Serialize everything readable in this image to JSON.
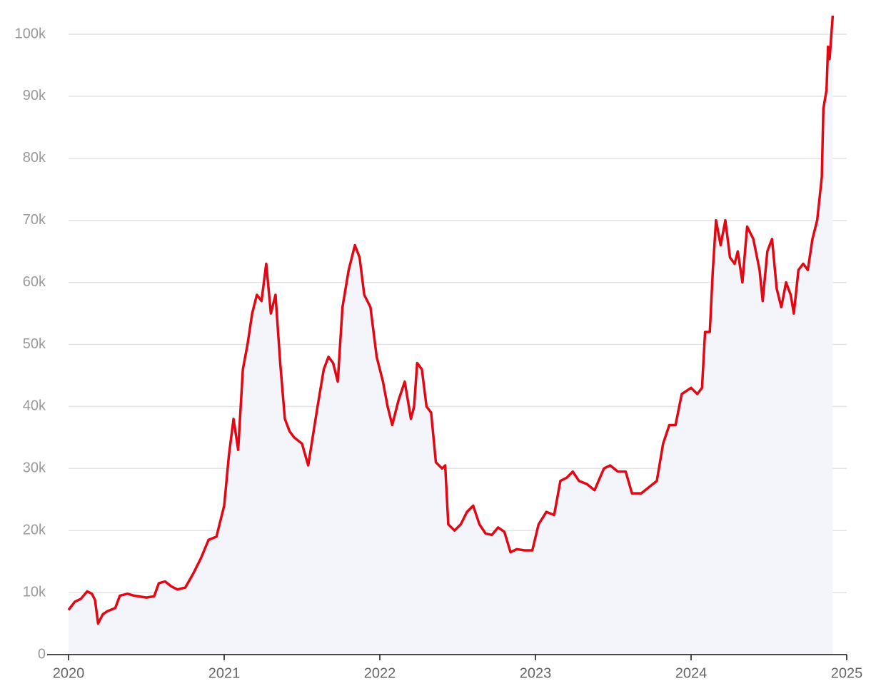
{
  "chart_data": {
    "type": "line",
    "x": [
      2020.0,
      2020.04,
      2020.08,
      2020.12,
      2020.15,
      2020.17,
      2020.19,
      2020.22,
      2020.25,
      2020.3,
      2020.33,
      2020.38,
      2020.42,
      2020.5,
      2020.55,
      2020.58,
      2020.62,
      2020.66,
      2020.7,
      2020.75,
      2020.8,
      2020.85,
      2020.9,
      2020.95,
      2021.0,
      2021.03,
      2021.06,
      2021.09,
      2021.12,
      2021.15,
      2021.18,
      2021.21,
      2021.24,
      2021.27,
      2021.3,
      2021.33,
      2021.36,
      2021.39,
      2021.42,
      2021.45,
      2021.5,
      2021.54,
      2021.6,
      2021.64,
      2021.67,
      2021.7,
      2021.73,
      2021.76,
      2021.8,
      2021.84,
      2021.87,
      2021.9,
      2021.94,
      2021.98,
      2022.02,
      2022.05,
      2022.08,
      2022.12,
      2022.16,
      2022.2,
      2022.22,
      2022.24,
      2022.27,
      2022.3,
      2022.33,
      2022.36,
      2022.4,
      2022.42,
      2022.44,
      2022.48,
      2022.52,
      2022.56,
      2022.6,
      2022.64,
      2022.68,
      2022.72,
      2022.76,
      2022.8,
      2022.84,
      2022.88,
      2022.93,
      2022.98,
      2023.02,
      2023.07,
      2023.12,
      2023.16,
      2023.2,
      2023.24,
      2023.28,
      2023.33,
      2023.38,
      2023.44,
      2023.48,
      2023.53,
      2023.58,
      2023.62,
      2023.68,
      2023.73,
      2023.78,
      2023.82,
      2023.86,
      2023.9,
      2023.94,
      2024.0,
      2024.04,
      2024.07,
      2024.09,
      2024.12,
      2024.14,
      2024.16,
      2024.19,
      2024.22,
      2024.25,
      2024.28,
      2024.3,
      2024.33,
      2024.36,
      2024.4,
      2024.44,
      2024.46,
      2024.49,
      2024.52,
      2024.55,
      2024.58,
      2024.61,
      2024.64,
      2024.66,
      2024.69,
      2024.72,
      2024.75,
      2024.78,
      2024.81,
      2024.84,
      2024.85,
      2024.87,
      2024.88,
      2024.89,
      2024.91
    ],
    "values": [
      7200,
      8500,
      9000,
      10200,
      9800,
      8800,
      5000,
      6500,
      7000,
      7500,
      9500,
      9800,
      9500,
      9200,
      9400,
      11500,
      11800,
      11000,
      10500,
      10800,
      13000,
      15500,
      18500,
      19000,
      24000,
      32000,
      38000,
      33000,
      46000,
      50000,
      55000,
      58000,
      57000,
      63000,
      55000,
      58000,
      47000,
      38000,
      36000,
      35000,
      34000,
      30500,
      40000,
      46000,
      48000,
      47000,
      44000,
      56000,
      62000,
      66000,
      64000,
      58000,
      56000,
      48000,
      44000,
      40000,
      37000,
      41000,
      44000,
      38000,
      40000,
      47000,
      46000,
      40000,
      39000,
      31000,
      30000,
      30500,
      21000,
      20000,
      21000,
      23000,
      24000,
      21000,
      19500,
      19300,
      20500,
      19800,
      16500,
      17000,
      16800,
      16800,
      21000,
      23000,
      22500,
      28000,
      28500,
      29500,
      28000,
      27500,
      26500,
      30000,
      30500,
      29500,
      29500,
      26000,
      26000,
      27000,
      28000,
      34000,
      37000,
      37000,
      42000,
      43000,
      42000,
      43000,
      52000,
      52000,
      62000,
      70000,
      66000,
      70000,
      64000,
      63000,
      65000,
      60000,
      69000,
      67000,
      62000,
      57000,
      65000,
      67000,
      59000,
      56000,
      60000,
      58000,
      55000,
      62000,
      63000,
      62000,
      67000,
      70000,
      77000,
      88000,
      91000,
      98000,
      96000,
      103000
    ],
    "color": "#e30613",
    "fill": "#f4f5fa",
    "xlim": [
      2020,
      2025
    ],
    "xticks": [
      2020,
      2021,
      2022,
      2023,
      2024,
      2025
    ],
    "ylim": [
      0,
      105000
    ],
    "yticks": [
      0,
      {
        "value": 10000,
        "label": "10k"
      },
      {
        "value": 20000,
        "label": "20k"
      },
      {
        "value": 30000,
        "label": "30k"
      },
      {
        "value": 40000,
        "label": "40k"
      },
      {
        "value": 50000,
        "label": "50k"
      },
      {
        "value": 60000,
        "label": "60k"
      },
      {
        "value": 70000,
        "label": "70k"
      },
      {
        "value": 80000,
        "label": "80k"
      },
      {
        "value": 90000,
        "label": "90k"
      },
      {
        "value": 100000,
        "label": "100k"
      }
    ],
    "grid": true
  }
}
